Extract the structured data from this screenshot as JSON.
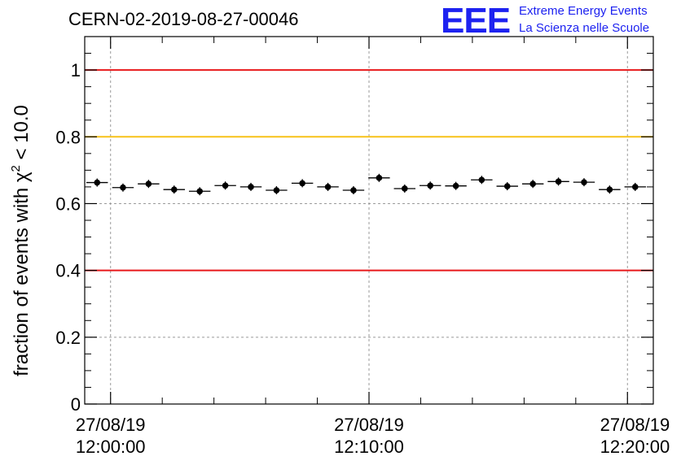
{
  "header": {
    "run_id": "CERN-02-2019-08-27-00046",
    "logo_text": "EEE",
    "logo_line1": "Extreme Energy Events",
    "logo_line2": "La Scienza nelle Scuole"
  },
  "chart_data": {
    "type": "scatter",
    "ylabel_prefix": "fraction of events with ",
    "ylabel_symbol": "χ",
    "ylabel_exponent": "2",
    "ylabel_suffix": " < 10.0",
    "ylim": [
      0,
      1.1
    ],
    "yticks": [
      "0",
      "0.2",
      "0.4",
      "0.6",
      "0.8",
      "1"
    ],
    "xlim_minutes": [
      -1.0,
      21.0
    ],
    "xticks": [
      {
        "minute": 0,
        "date": "27/08/19",
        "time": "12:00:00"
      },
      {
        "minute": 10,
        "date": "27/08/19",
        "time": "12:10:00"
      },
      {
        "minute": 20,
        "date": "27/08/19",
        "time": "12:20:00"
      }
    ],
    "bin_width_minutes": 0.833,
    "grid": true,
    "reference_lines": [
      {
        "y": 1.0,
        "color": "#e8191b"
      },
      {
        "y": 0.8,
        "color": "#f7c21a"
      },
      {
        "y": 0.4,
        "color": "#e8191b"
      }
    ],
    "marker_color": "#000000",
    "points": [
      {
        "x": -0.52,
        "y": 0.663
      },
      {
        "x": 0.48,
        "y": 0.648
      },
      {
        "x": 1.47,
        "y": 0.659
      },
      {
        "x": 2.46,
        "y": 0.642
      },
      {
        "x": 3.45,
        "y": 0.637
      },
      {
        "x": 4.44,
        "y": 0.654
      },
      {
        "x": 5.43,
        "y": 0.65
      },
      {
        "x": 6.42,
        "y": 0.64
      },
      {
        "x": 7.42,
        "y": 0.661
      },
      {
        "x": 8.41,
        "y": 0.65
      },
      {
        "x": 9.4,
        "y": 0.64
      },
      {
        "x": 10.39,
        "y": 0.677
      },
      {
        "x": 11.38,
        "y": 0.645
      },
      {
        "x": 12.37,
        "y": 0.654
      },
      {
        "x": 13.36,
        "y": 0.653
      },
      {
        "x": 14.36,
        "y": 0.671
      },
      {
        "x": 15.35,
        "y": 0.652
      },
      {
        "x": 16.34,
        "y": 0.659
      },
      {
        "x": 17.33,
        "y": 0.666
      },
      {
        "x": 18.32,
        "y": 0.664
      },
      {
        "x": 19.31,
        "y": 0.642
      },
      {
        "x": 20.3,
        "y": 0.65
      }
    ]
  }
}
